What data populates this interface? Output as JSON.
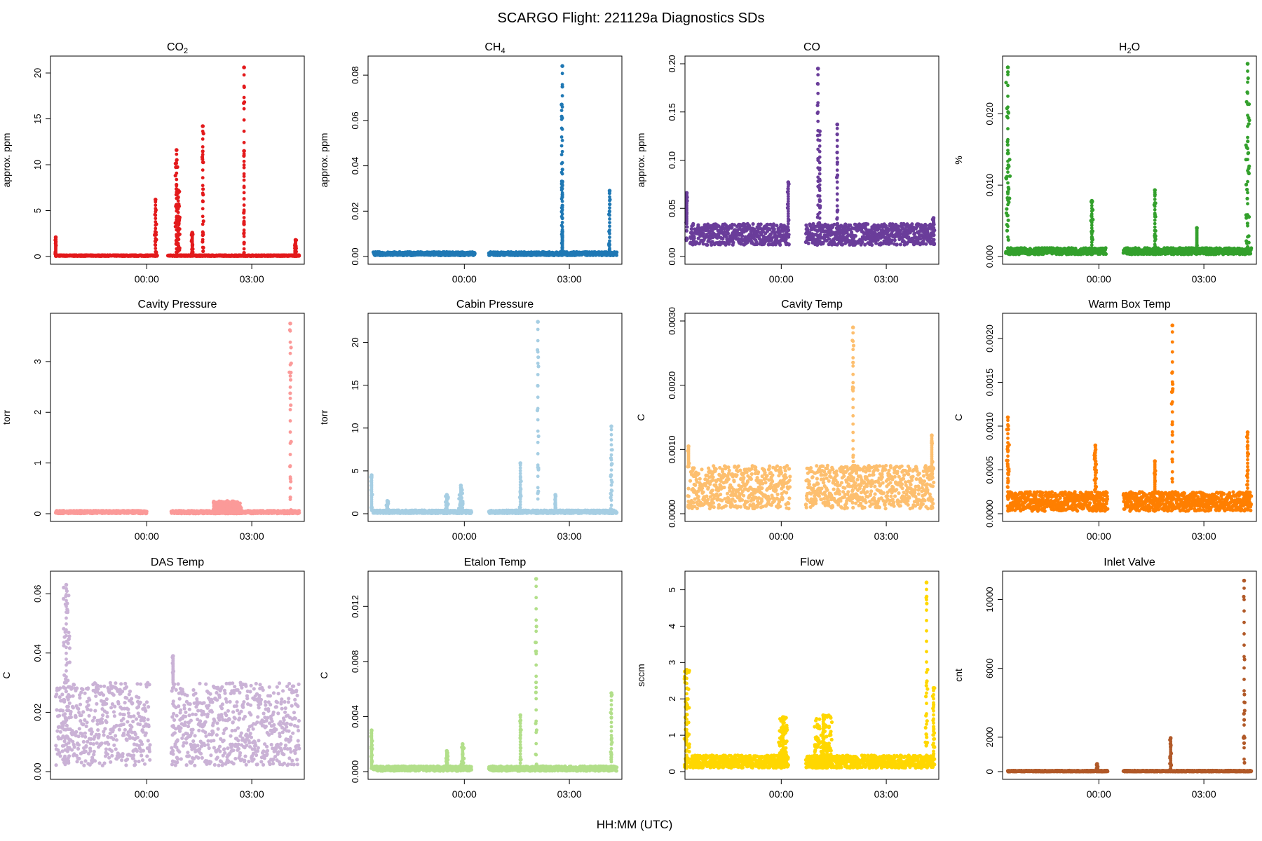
{
  "figure": {
    "title": "SCARGO Flight: 221129a  Diagnostics SDs",
    "xlabel": "HH:MM (UTC)"
  },
  "chart_data": [
    {
      "type": "scatter",
      "title": "CO",
      "title_sub": "2",
      "ylabel": "approx. ppm",
      "color": "#E31A1C",
      "yticks": [
        0,
        5,
        10,
        15,
        20
      ],
      "yticklabels": [
        "0",
        "5",
        "10",
        "15",
        "20"
      ],
      "ylim": [
        0,
        21
      ],
      "xticks": [
        0,
        3
      ],
      "xticklabels": [
        "00:00",
        "03:00"
      ],
      "xlim": [
        -2.75,
        4.5
      ],
      "gap": [
        0.3,
        0.6
      ],
      "base": [
        0.05,
        0.15
      ],
      "spikes": [
        {
          "x": 0.25,
          "y": 6.2,
          "w": 0.05
        },
        {
          "x": 0.85,
          "y": 11.6,
          "w": 0.08
        },
        {
          "x": 0.9,
          "y": 7.2,
          "w": 0.1
        },
        {
          "x": 1.6,
          "y": 14.2,
          "w": 0.05
        },
        {
          "x": 2.78,
          "y": 20.6,
          "w": 0.02
        },
        {
          "x": 2.78,
          "y": 11.5,
          "w": 0.01
        },
        {
          "x": 4.25,
          "y": 1.8,
          "w": 0.04
        },
        {
          "x": -2.6,
          "y": 2.1,
          "w": 0.03
        },
        {
          "x": 1.3,
          "y": 2.6,
          "w": 0.05
        }
      ]
    },
    {
      "type": "scatter",
      "title": "CH",
      "title_sub": "4",
      "ylabel": "approx. ppm",
      "color": "#1F78B4",
      "yticks": [
        0,
        0.02,
        0.04,
        0.06,
        0.08
      ],
      "yticklabels": [
        "0.00",
        "0.02",
        "0.04",
        "0.06",
        "0.08"
      ],
      "ylim": [
        0,
        0.085
      ],
      "xticks": [
        0,
        3
      ],
      "xticklabels": [
        "00:00",
        "03:00"
      ],
      "xlim": [
        -2.75,
        4.5
      ],
      "gap": [
        0.3,
        0.7
      ],
      "base": [
        0.0005,
        0.002
      ],
      "spikes": [
        {
          "x": 2.8,
          "y": 0.084,
          "w": 0.02
        },
        {
          "x": 2.78,
          "y": 0.067,
          "w": 0.01
        },
        {
          "x": 2.8,
          "y": 0.033,
          "w": 0.01
        },
        {
          "x": 2.8,
          "y": 0.011,
          "w": 0.01
        },
        {
          "x": 4.15,
          "y": 0.029,
          "w": 0.04
        }
      ]
    },
    {
      "type": "scatter",
      "title": "CO",
      "title_sub": "",
      "ylabel": "approx. ppm",
      "color": "#6A3D9A",
      "yticks": [
        0,
        0.05,
        0.1,
        0.15,
        0.2
      ],
      "yticklabels": [
        "0.00",
        "0.05",
        "0.10",
        "0.15",
        "0.20"
      ],
      "ylim": [
        0,
        0.2
      ],
      "xticks": [
        0,
        3
      ],
      "xticklabels": [
        "00:00",
        "03:00"
      ],
      "xlim": [
        -2.75,
        4.5
      ],
      "gap": [
        0.2,
        0.7
      ],
      "base": [
        0.012,
        0.034
      ],
      "spikes": [
        {
          "x": -2.7,
          "y": 0.066,
          "w": 0.04
        },
        {
          "x": 0.2,
          "y": 0.077,
          "w": 0.04
        },
        {
          "x": 1.05,
          "y": 0.195,
          "w": 0.03
        },
        {
          "x": 1.1,
          "y": 0.13,
          "w": 0.03
        },
        {
          "x": 1.6,
          "y": 0.137,
          "w": 0.04
        },
        {
          "x": 4.35,
          "y": 0.04,
          "w": 0.05
        }
      ]
    },
    {
      "type": "scatter",
      "title": "H",
      "title_sub": "2",
      "title_after": "O",
      "ylabel": "%",
      "color": "#33A02C",
      "yticks": [
        0,
        0.01,
        0.02
      ],
      "yticklabels": [
        "0.000",
        "0.010",
        "0.020"
      ],
      "ylim": [
        0,
        0.027
      ],
      "xticks": [
        0,
        3
      ],
      "xticklabels": [
        "00:00",
        "03:00"
      ],
      "xlim": [
        -2.75,
        4.5
      ],
      "gap": [
        0.2,
        0.7
      ],
      "base": [
        0.0003,
        0.0012
      ],
      "spikes": [
        {
          "x": -2.6,
          "y": 0.0265,
          "w": 0.12
        },
        {
          "x": -0.2,
          "y": 0.0078,
          "w": 0.06
        },
        {
          "x": 1.6,
          "y": 0.0093,
          "w": 0.05
        },
        {
          "x": 2.8,
          "y": 0.004,
          "w": 0.02
        },
        {
          "x": 4.25,
          "y": 0.027,
          "w": 0.1
        }
      ]
    },
    {
      "type": "scatter",
      "title": "Cavity Pressure",
      "ylabel": "torr",
      "color": "#FB9A99",
      "yticks": [
        0,
        1,
        2,
        3
      ],
      "yticklabels": [
        "0",
        "1",
        "2",
        "3"
      ],
      "ylim": [
        0,
        3.8
      ],
      "xticks": [
        0,
        3
      ],
      "xticklabels": [
        "00:00",
        "03:00"
      ],
      "xlim": [
        -2.75,
        4.5
      ],
      "gap": [
        0,
        0.7
      ],
      "base": [
        0.005,
        0.06
      ],
      "spikes": [
        {
          "x": 2.3,
          "y": 0.25,
          "w": 0.8
        },
        {
          "x": 4.1,
          "y": 3.75,
          "w": 0.05
        }
      ]
    },
    {
      "type": "scatter",
      "title": "Cabin Pressure",
      "ylabel": "torr",
      "color": "#A6CEE3",
      "yticks": [
        0,
        5,
        10,
        15,
        20
      ],
      "yticklabels": [
        "0",
        "5",
        "10",
        "15",
        "20"
      ],
      "ylim": [
        0,
        22.5
      ],
      "xticks": [
        0,
        3
      ],
      "xticklabels": [
        "00:00",
        "03:00"
      ],
      "xlim": [
        -2.75,
        4.5
      ],
      "gap": [
        0.2,
        0.7
      ],
      "base": [
        0.05,
        0.4
      ],
      "spikes": [
        {
          "x": -2.65,
          "y": 4.5,
          "w": 0.04
        },
        {
          "x": -0.1,
          "y": 3.3,
          "w": 0.12
        },
        {
          "x": -0.5,
          "y": 2.2,
          "w": 0.08
        },
        {
          "x": 1.6,
          "y": 5.9,
          "w": 0.04
        },
        {
          "x": 2.1,
          "y": 22.4,
          "w": 0.04
        },
        {
          "x": 4.2,
          "y": 10.2,
          "w": 0.05
        },
        {
          "x": 2.6,
          "y": 2.2,
          "w": 0.05
        },
        {
          "x": -2.2,
          "y": 1.5,
          "w": 0.06
        }
      ]
    },
    {
      "type": "scatter",
      "title": "Cavity Temp",
      "ylabel": "C",
      "color": "#FDBF6F",
      "yticks": [
        0,
        0.001,
        0.002,
        0.003
      ],
      "yticklabels": [
        "0.0000",
        "0.0010",
        "0.0020",
        "0.0030"
      ],
      "ylim": [
        0,
        0.003
      ],
      "xticks": [
        0,
        3
      ],
      "xticklabels": [
        "00:00",
        "03:00"
      ],
      "xlim": [
        -2.75,
        4.5
      ],
      "gap": [
        0.25,
        0.7
      ],
      "base": [
        8e-05,
        0.00075
      ],
      "spikes": [
        {
          "x": 2.05,
          "y": 0.0029,
          "w": 0.04
        },
        {
          "x": 4.3,
          "y": 0.00122,
          "w": 0.05
        },
        {
          "x": -2.65,
          "y": 0.00105,
          "w": 0.04
        }
      ]
    },
    {
      "type": "scatter",
      "title": "Warm Box Temp",
      "ylabel": "C",
      "color": "#FF7F00",
      "yticks": [
        0,
        0.0005,
        0.001,
        0.0015,
        0.002
      ],
      "yticklabels": [
        "0.0000",
        "0.0005",
        "0.0010",
        "0.0015",
        "0.0020"
      ],
      "ylim": [
        0,
        0.0022
      ],
      "xticks": [
        0,
        3
      ],
      "xticklabels": [
        "00:00",
        "03:00"
      ],
      "xlim": [
        -2.75,
        4.5
      ],
      "gap": [
        0.25,
        0.7
      ],
      "base": [
        3e-05,
        0.00025
      ],
      "spikes": [
        {
          "x": -2.6,
          "y": 0.0011,
          "w": 0.08
        },
        {
          "x": -0.1,
          "y": 0.00078,
          "w": 0.08
        },
        {
          "x": 1.6,
          "y": 0.0006,
          "w": 0.05
        },
        {
          "x": 2.1,
          "y": 0.00215,
          "w": 0.04
        },
        {
          "x": 4.25,
          "y": 0.00093,
          "w": 0.06
        }
      ]
    },
    {
      "type": "scatter",
      "title": "DAS Temp",
      "ylabel": "C",
      "color": "#CAB2D6",
      "yticks": [
        0,
        0.02,
        0.04,
        0.06
      ],
      "yticklabels": [
        "0.00",
        "0.02",
        "0.04",
        "0.06"
      ],
      "ylim": [
        0,
        0.065
      ],
      "xticks": [
        0,
        3
      ],
      "xticklabels": [
        "00:00",
        "03:00"
      ],
      "xlim": [
        -2.75,
        4.5
      ],
      "gap": [
        0.1,
        0.7
      ],
      "base": [
        0.002,
        0.03
      ],
      "spikes": [
        {
          "x": -2.3,
          "y": 0.063,
          "w": 0.2
        },
        {
          "x": 0.75,
          "y": 0.039,
          "w": 0.04
        }
      ]
    },
    {
      "type": "scatter",
      "title": "Etalon Temp",
      "ylabel": "C",
      "color": "#B2DF8A",
      "yticks": [
        0,
        0.004,
        0.008,
        0.012
      ],
      "yticklabels": [
        "0.000",
        "0.004",
        "0.008",
        "0.012"
      ],
      "ylim": [
        0,
        0.014
      ],
      "xticks": [
        0,
        3
      ],
      "xticklabels": [
        "00:00",
        "03:00"
      ],
      "xlim": [
        -2.75,
        4.5
      ],
      "gap": [
        0.2,
        0.7
      ],
      "base": [
        5e-05,
        0.0004
      ],
      "spikes": [
        {
          "x": -2.65,
          "y": 0.003,
          "w": 0.04
        },
        {
          "x": -0.5,
          "y": 0.0015,
          "w": 0.06
        },
        {
          "x": -0.05,
          "y": 0.002,
          "w": 0.08
        },
        {
          "x": 1.6,
          "y": 0.0041,
          "w": 0.04
        },
        {
          "x": 2.05,
          "y": 0.014,
          "w": 0.04
        },
        {
          "x": 4.2,
          "y": 0.0057,
          "w": 0.04
        }
      ]
    },
    {
      "type": "scatter",
      "title": "Flow",
      "ylabel": "sccm",
      "color": "#FFD700",
      "yticks": [
        0,
        1,
        2,
        3,
        4,
        5
      ],
      "yticklabels": [
        "0",
        "1",
        "2",
        "3",
        "4",
        "5"
      ],
      "ylim": [
        0,
        5.3
      ],
      "xticks": [
        0,
        3
      ],
      "xticklabels": [
        "00:00",
        "03:00"
      ],
      "xlim": [
        -2.75,
        4.5
      ],
      "gap": [
        0.2,
        0.7
      ],
      "base": [
        0.1,
        0.45
      ],
      "spikes": [
        {
          "x": -2.7,
          "y": 2.8,
          "w": 0.15
        },
        {
          "x": 0.05,
          "y": 1.5,
          "w": 0.25
        },
        {
          "x": 1.2,
          "y": 1.55,
          "w": 0.5
        },
        {
          "x": 4.15,
          "y": 5.2,
          "w": 0.06
        },
        {
          "x": 4.35,
          "y": 2.3,
          "w": 0.06
        }
      ]
    },
    {
      "type": "scatter",
      "title": "Inlet Valve",
      "ylabel": "cnt",
      "color": "#B15928",
      "yticks": [
        0,
        2000,
        6000,
        10000
      ],
      "yticklabels": [
        "0",
        "2000",
        "6000",
        "10000"
      ],
      "ylim": [
        0,
        11200
      ],
      "xticks": [
        0,
        3
      ],
      "xticklabels": [
        "00:00",
        "03:00"
      ],
      "xlim": [
        -2.75,
        4.5
      ],
      "gap": [
        0.25,
        0.7
      ],
      "base": [
        0,
        60
      ],
      "spikes": [
        {
          "x": -0.05,
          "y": 450,
          "w": 0.05
        },
        {
          "x": 2.05,
          "y": 1950,
          "w": 0.05
        },
        {
          "x": 4.15,
          "y": 11100,
          "w": 0.04
        }
      ]
    }
  ]
}
